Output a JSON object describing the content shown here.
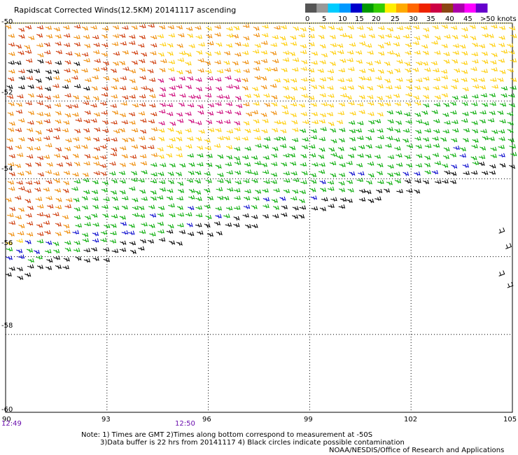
{
  "title": "Rapidscat Corrected Winds(12.5KM) 20141117 ascending",
  "legend": {
    "labels": [
      "0",
      "5",
      "10",
      "15",
      "20",
      "25",
      "30",
      "35",
      "40",
      "45",
      ">50 knots"
    ],
    "colors": [
      "#555555",
      "#999999",
      "#00ccff",
      "#0099ff",
      "#0000cc",
      "#009900",
      "#33cc00",
      "#ffee00",
      "#ffaa00",
      "#ff6600",
      "#ee2200",
      "#cc0044",
      "#8b4513",
      "#aa00aa",
      "#ff00ff",
      "#6600cc"
    ]
  },
  "axes": {
    "x_ticks": [
      "90",
      "93",
      "96",
      "99",
      "102",
      "105"
    ],
    "y_ticks": [
      "-50",
      "-52",
      "-54",
      "-56",
      "-58",
      "-60"
    ],
    "lon_range": [
      90,
      105
    ],
    "lat_range": [
      -60,
      -50
    ]
  },
  "times": [
    "12:49",
    "12:50"
  ],
  "notes": {
    "line1": "Note: 1) Times are GMT 2)Times along bottom correspond to measurement at -50S",
    "line2": "3)Data buffer is 22 hrs from 20141117  4) Black circles indicate possible contamination",
    "line3": "NOAA/NESDIS/Office of Research and Applications"
  },
  "wind_colors": {
    "calm": "#000000",
    "light": "#00aa00",
    "blue": "#0000cc",
    "moderate": "#ffcc00",
    "strong": "#ee8800",
    "gale": "#cc3300",
    "storm": "#cc0077"
  }
}
